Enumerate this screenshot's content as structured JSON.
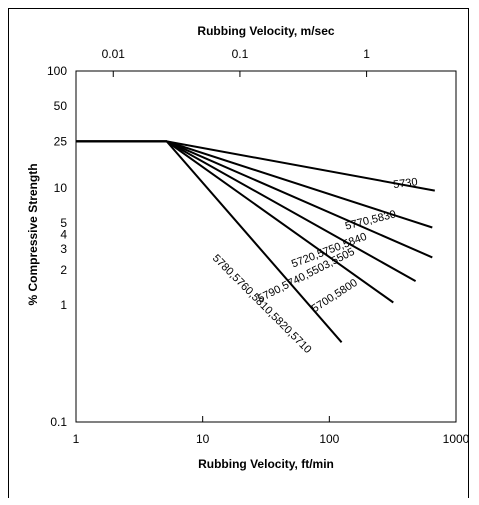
{
  "chart_data": {
    "type": "line",
    "title": "",
    "xlabel": "Rubbing Velocity, ft/min",
    "x2label": "Rubbing Velocity, m/sec",
    "ylabel": "% Compressive Strength",
    "x_scale": "log",
    "y_scale": "log",
    "xlim": [
      1,
      1000
    ],
    "ylim": [
      0.1,
      100
    ],
    "x_ticks": [
      {
        "value": 1,
        "label": "1"
      },
      {
        "value": 10,
        "label": "10"
      },
      {
        "value": 100,
        "label": "100"
      },
      {
        "value": 1000,
        "label": "1000"
      }
    ],
    "x2_ticks": [
      {
        "value": 0.01,
        "label": "0.01"
      },
      {
        "value": 0.1,
        "label": "0.1"
      },
      {
        "value": 1,
        "label": "1"
      }
    ],
    "y_ticks": [
      {
        "value": 100,
        "label": "100"
      },
      {
        "value": 50,
        "label": "50"
      },
      {
        "value": 25,
        "label": "25"
      },
      {
        "value": 10,
        "label": "10"
      },
      {
        "value": 5,
        "label": "5"
      },
      {
        "value": 4,
        "label": "4"
      },
      {
        "value": 3,
        "label": "3"
      },
      {
        "value": 2,
        "label": "2"
      },
      {
        "value": 1,
        "label": "1"
      },
      {
        "value": 0.1,
        "label": "0.1"
      }
    ],
    "grid": false,
    "series": [
      {
        "name": "5730",
        "x": [
          1,
          5.2,
          680
        ],
        "y": [
          25,
          25,
          9.5
        ]
      },
      {
        "name": "5770,5830",
        "x": [
          1,
          5.2,
          650
        ],
        "y": [
          25,
          25,
          4.6
        ]
      },
      {
        "name": "5720,5750,5840",
        "x": [
          1,
          5.2,
          650
        ],
        "y": [
          25,
          25,
          2.55
        ]
      },
      {
        "name": "5790,5740,5503,5505",
        "x": [
          1,
          5.2,
          480
        ],
        "y": [
          25,
          25,
          1.6
        ]
      },
      {
        "name": "5700,5800",
        "x": [
          1,
          5.2,
          320
        ],
        "y": [
          25,
          25,
          1.05
        ]
      },
      {
        "name": "5780,5760,5810,5820,5710",
        "x": [
          1,
          5.2,
          125
        ],
        "y": [
          25,
          25,
          0.48
        ]
      }
    ]
  }
}
